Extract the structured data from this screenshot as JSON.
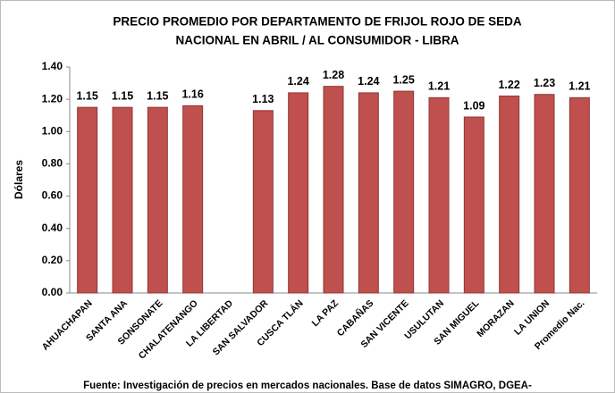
{
  "chart_data": {
    "type": "bar",
    "title": [
      "PRECIO PROMEDIO POR DEPARTAMENTO DE FRIJOL  ROJO DE SEDA",
      "NACIONAL EN ABRIL / AL CONSUMIDOR - LIBRA"
    ],
    "y_label": "Dólares",
    "source": "Fuente: Investigación de precios en mercados nacionales. Base de datos SIMAGRO, DGEA-",
    "categories": [
      "AHUACHAPAN",
      "SANTA ANA",
      "SONSONATE",
      "CHALATENANGO",
      "LA LIBERTAD",
      "SAN SALVADOR",
      "CUSCA TLÁN",
      "LA PAZ",
      "CABAÑAS",
      "SAN VICENTE",
      "USULUTAN",
      "SAN MIGUEL",
      "MORAZAN",
      "LA UNION",
      "Promedio Nac."
    ],
    "values": [
      1.15,
      1.15,
      1.15,
      1.16,
      null,
      1.13,
      1.24,
      1.28,
      1.24,
      1.25,
      1.21,
      1.09,
      1.22,
      1.23,
      1.21
    ],
    "color": "#c0504d",
    "ylim": [
      0,
      1.4
    ],
    "yticks": [
      {
        "value": 0,
        "label": "0.00"
      },
      {
        "value": 0.2,
        "label": "0.20"
      },
      {
        "value": 0.4,
        "label": "0.40"
      },
      {
        "value": 0.6,
        "label": "0.60"
      },
      {
        "value": 0.8,
        "label": "0.80"
      },
      {
        "value": 1.0,
        "label": "1.00"
      },
      {
        "value": 1.2,
        "label": "1.20"
      },
      {
        "value": 1.4,
        "label": "1.40"
      }
    ],
    "grid": false
  }
}
